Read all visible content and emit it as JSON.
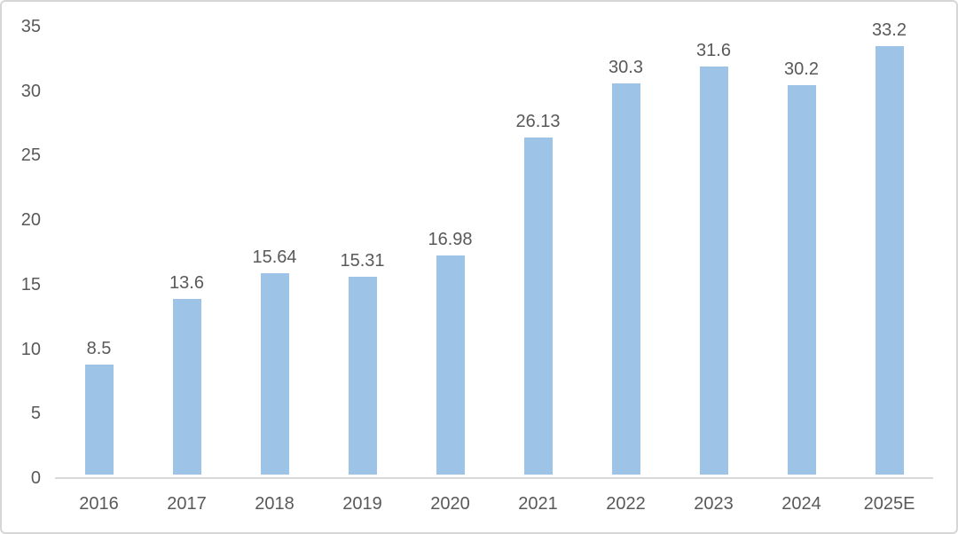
{
  "chart": {
    "background_color": "#ffffff",
    "border_color": "#d6d6d6",
    "bar_color": "#9dc3e6",
    "axis_line_color": "#d9d9d9",
    "text_color": "#595959"
  },
  "chart_data": {
    "type": "bar",
    "categories": [
      "2016",
      "2017",
      "2018",
      "2019",
      "2020",
      "2021",
      "2022",
      "2023",
      "2024",
      "2025E"
    ],
    "values": [
      8.5,
      13.6,
      15.64,
      15.31,
      16.98,
      26.13,
      30.3,
      31.6,
      30.2,
      33.2
    ],
    "value_labels": [
      "8.5",
      "13.6",
      "15.64",
      "15.31",
      "16.98",
      "26.13",
      "30.3",
      "31.6",
      "30.2",
      "33.2"
    ],
    "title": "",
    "xlabel": "",
    "ylabel": "",
    "ylim": [
      0,
      35
    ],
    "yticks": [
      0,
      5,
      10,
      15,
      20,
      25,
      30,
      35
    ],
    "grid": false,
    "legend": false,
    "data_labels_shown": true
  }
}
